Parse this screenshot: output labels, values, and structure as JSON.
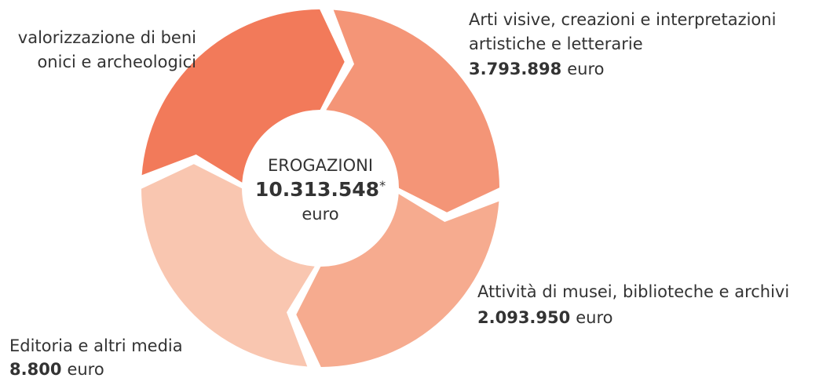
{
  "center": {
    "title": "EROGAZIONI",
    "total": "10.313.548",
    "mark": "*",
    "unit": "euro"
  },
  "segments": [
    {
      "lines": [
        "valorizzazione di beni",
        "onici e archeologici"
      ],
      "color": "#f27a5a"
    },
    {
      "lines": [
        "Arti visive, creazioni e interpretazioni",
        "artistiche e letterarie"
      ],
      "amount": "3.793.898",
      "unit": "euro",
      "color": "#f49577"
    },
    {
      "lines": [
        "Attività di musei, biblioteche e archivi"
      ],
      "amount": "2.093.950",
      "unit": "euro",
      "color": "#f6ab8f"
    },
    {
      "lines": [
        "Editoria e altri media"
      ],
      "amount": "8.800",
      "unit": "euro",
      "color": "#f9c6b0"
    }
  ]
}
